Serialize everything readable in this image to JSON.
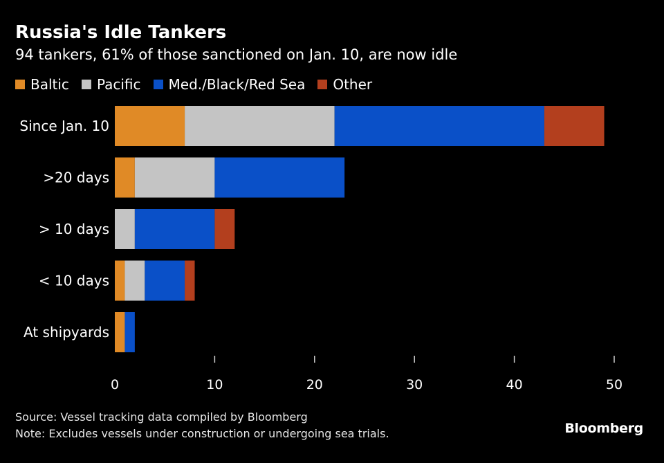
{
  "chart_data": {
    "type": "bar",
    "orientation": "horizontal",
    "stacked": true,
    "title": "Russia's Idle Tankers",
    "subtitle": "94 tankers, 61% of those sanctioned on Jan. 10, are now idle",
    "categories": [
      "Since Jan. 10",
      ">20 days",
      "> 10 days",
      "< 10 days",
      "At shipyards"
    ],
    "series": [
      {
        "name": "Baltic",
        "color": "#e08a26",
        "values": [
          7,
          2,
          0,
          1,
          1
        ]
      },
      {
        "name": "Pacific",
        "color": "#c4c4c4",
        "values": [
          15,
          8,
          2,
          2,
          0
        ]
      },
      {
        "name": "Med./Black/Red Sea",
        "color": "#0a50c8",
        "values": [
          21,
          13,
          8,
          4,
          1
        ]
      },
      {
        "name": "Other",
        "color": "#b33f1e",
        "values": [
          6,
          0,
          2,
          1,
          0
        ]
      }
    ],
    "xticks": [
      0,
      10,
      20,
      30,
      40,
      50
    ],
    "xlim": [
      0,
      50
    ],
    "xlabel": "",
    "ylabel": "",
    "grid": false,
    "legend": "top-left"
  },
  "footer": {
    "source": "Source: Vessel tracking data compiled by Bloomberg",
    "note": "Note: Excludes vessels under construction or undergoing sea trials."
  },
  "brand": "Bloomberg",
  "colors": {
    "background": "#000000",
    "text": "#ffffff",
    "tick": "#cfcfcf"
  }
}
